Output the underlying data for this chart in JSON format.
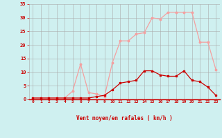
{
  "x": [
    0,
    1,
    2,
    3,
    4,
    5,
    6,
    7,
    8,
    9,
    10,
    11,
    12,
    13,
    14,
    15,
    16,
    17,
    18,
    19,
    20,
    21,
    22,
    23
  ],
  "rafales": [
    0.5,
    0.5,
    0.5,
    0.5,
    0.5,
    3,
    13,
    2.5,
    2,
    1,
    13.5,
    21.5,
    21.5,
    24,
    24.5,
    30,
    29.5,
    32,
    32,
    32,
    32,
    21,
    21,
    11
  ],
  "moyen": [
    0.5,
    0.5,
    0.5,
    0.5,
    0.5,
    0.5,
    0.5,
    0.5,
    1,
    1.5,
    3.5,
    6,
    6.5,
    7,
    10.5,
    10.5,
    9,
    8.5,
    8.5,
    10.5,
    7,
    6.5,
    4.5,
    1.5
  ],
  "rafales_color": "#f4a0a0",
  "moyen_color": "#cc0000",
  "bg_color": "#cff0f0",
  "grid_color": "#aaaaaa",
  "xlabel": "Vent moyen/en rafales ( km/h )",
  "xlabel_color": "#cc0000",
  "tick_color": "#cc0000",
  "ylim": [
    0,
    35
  ],
  "xlim": [
    -0.5,
    23.5
  ],
  "yticks": [
    0,
    5,
    10,
    15,
    20,
    25,
    30,
    35
  ]
}
